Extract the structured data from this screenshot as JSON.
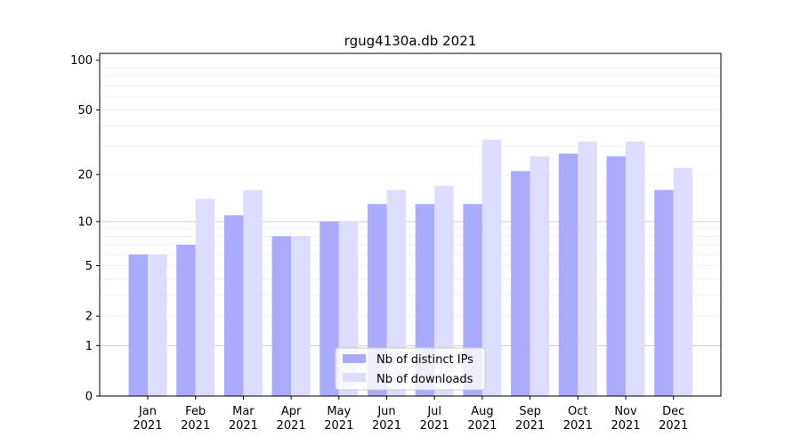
{
  "chart_data": {
    "type": "bar",
    "title": "rgug4130a.db 2021",
    "xlabel": "",
    "ylabel": "",
    "categories": [
      [
        "Jan",
        "2021"
      ],
      [
        "Feb",
        "2021"
      ],
      [
        "Mar",
        "2021"
      ],
      [
        "Apr",
        "2021"
      ],
      [
        "May",
        "2021"
      ],
      [
        "Jun",
        "2021"
      ],
      [
        "Jul",
        "2021"
      ],
      [
        "Aug",
        "2021"
      ],
      [
        "Sep",
        "2021"
      ],
      [
        "Oct",
        "2021"
      ],
      [
        "Nov",
        "2021"
      ],
      [
        "Dec",
        "2021"
      ]
    ],
    "series": [
      {
        "name": "Nb of distinct IPs",
        "color": "#aaaaff",
        "values": [
          6,
          7,
          11,
          8,
          10,
          13,
          13,
          13,
          21,
          27,
          26,
          16
        ]
      },
      {
        "name": "Nb of downloads",
        "color": "#ddddff",
        "values": [
          6,
          14,
          16,
          8,
          10,
          16,
          17,
          33,
          26,
          32,
          32,
          22
        ]
      }
    ],
    "y_scale": "log(1+y)",
    "y_ticks": [
      "0",
      "1",
      "2",
      "5",
      "10",
      "20",
      "50",
      "100"
    ],
    "ylim": [
      0,
      110
    ],
    "grid": "horizontal",
    "legend_position": "lower-center"
  }
}
